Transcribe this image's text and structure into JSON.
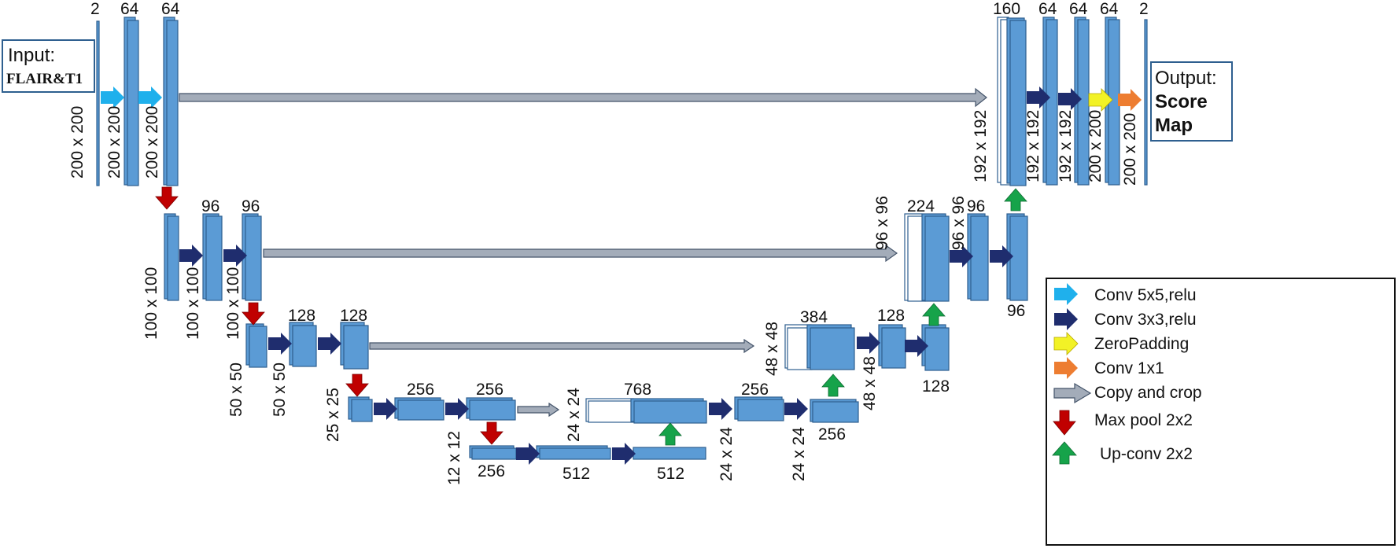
{
  "colors": {
    "block_fill": "#5b9bd5",
    "block_stroke": "#2e5f8f",
    "conv5_arrow": "#1fb0ec",
    "conv3_arrow": "#1f2d6e",
    "zeropad_arrow": "#f2f226",
    "conv1_arrow": "#ed7d31",
    "copy_arrow": "#a3acb9",
    "maxpool_arrow": "#c00000",
    "upconv_arrow": "#16a34a"
  },
  "input": {
    "title": "Input:",
    "subtitle": "FLAIR&T1"
  },
  "output": {
    "title": "Output:",
    "line1": "Score",
    "line2": "Map"
  },
  "channels": {
    "c2_in": "2",
    "c64_a": "64",
    "c64_b": "64",
    "c96_a": "96",
    "c96_b": "96",
    "c128_a": "128",
    "c128_b": "128",
    "c256_a": "256",
    "c256_b": "256",
    "c256_c": "256",
    "c512_a": "512",
    "c512_b": "512",
    "c768": "768",
    "c256_d": "256",
    "c256_e": "256",
    "c384": "384",
    "c128_c": "128",
    "c128_d": "128",
    "c224": "224",
    "c96_c": "96",
    "c96_d": "96",
    "c160": "160",
    "c64_c": "64",
    "c64_d": "64",
    "c64_e": "64",
    "c2_out": "2"
  },
  "sizes": {
    "s200_a": "200 x 200",
    "s200_b": "200 x 200",
    "s200_c": "200 x 200",
    "s100_a": "100 x 100",
    "s100_b": "100 x 100",
    "s100_c": "100 x 100",
    "s50_a": "50 x 50",
    "s50_b": "50 x 50",
    "s25": "25 x 25",
    "s12": "12 x 12",
    "s24_a": "24 x 24",
    "s24_b": "24 x 24",
    "s24_c": "24 x 24",
    "s48_a": "48 x 48",
    "s48_b": "48 x 48",
    "s96_a": "96 x 96",
    "s96_b": "96 x 96",
    "s192_a": "192 x 192",
    "s192_b": "192 x 192",
    "s192_c": "192 x 192",
    "s200_d": "200 x 200",
    "s200_e": "200 x 200"
  },
  "legend": {
    "conv5": "Conv 5x5,relu",
    "conv3": "Conv 3x3,relu",
    "zeropad": "ZeroPadding",
    "conv1": "Conv 1x1",
    "copy": "Copy and crop",
    "maxpool": "Max pool 2x2",
    "upconv": "Up-conv 2x2"
  }
}
